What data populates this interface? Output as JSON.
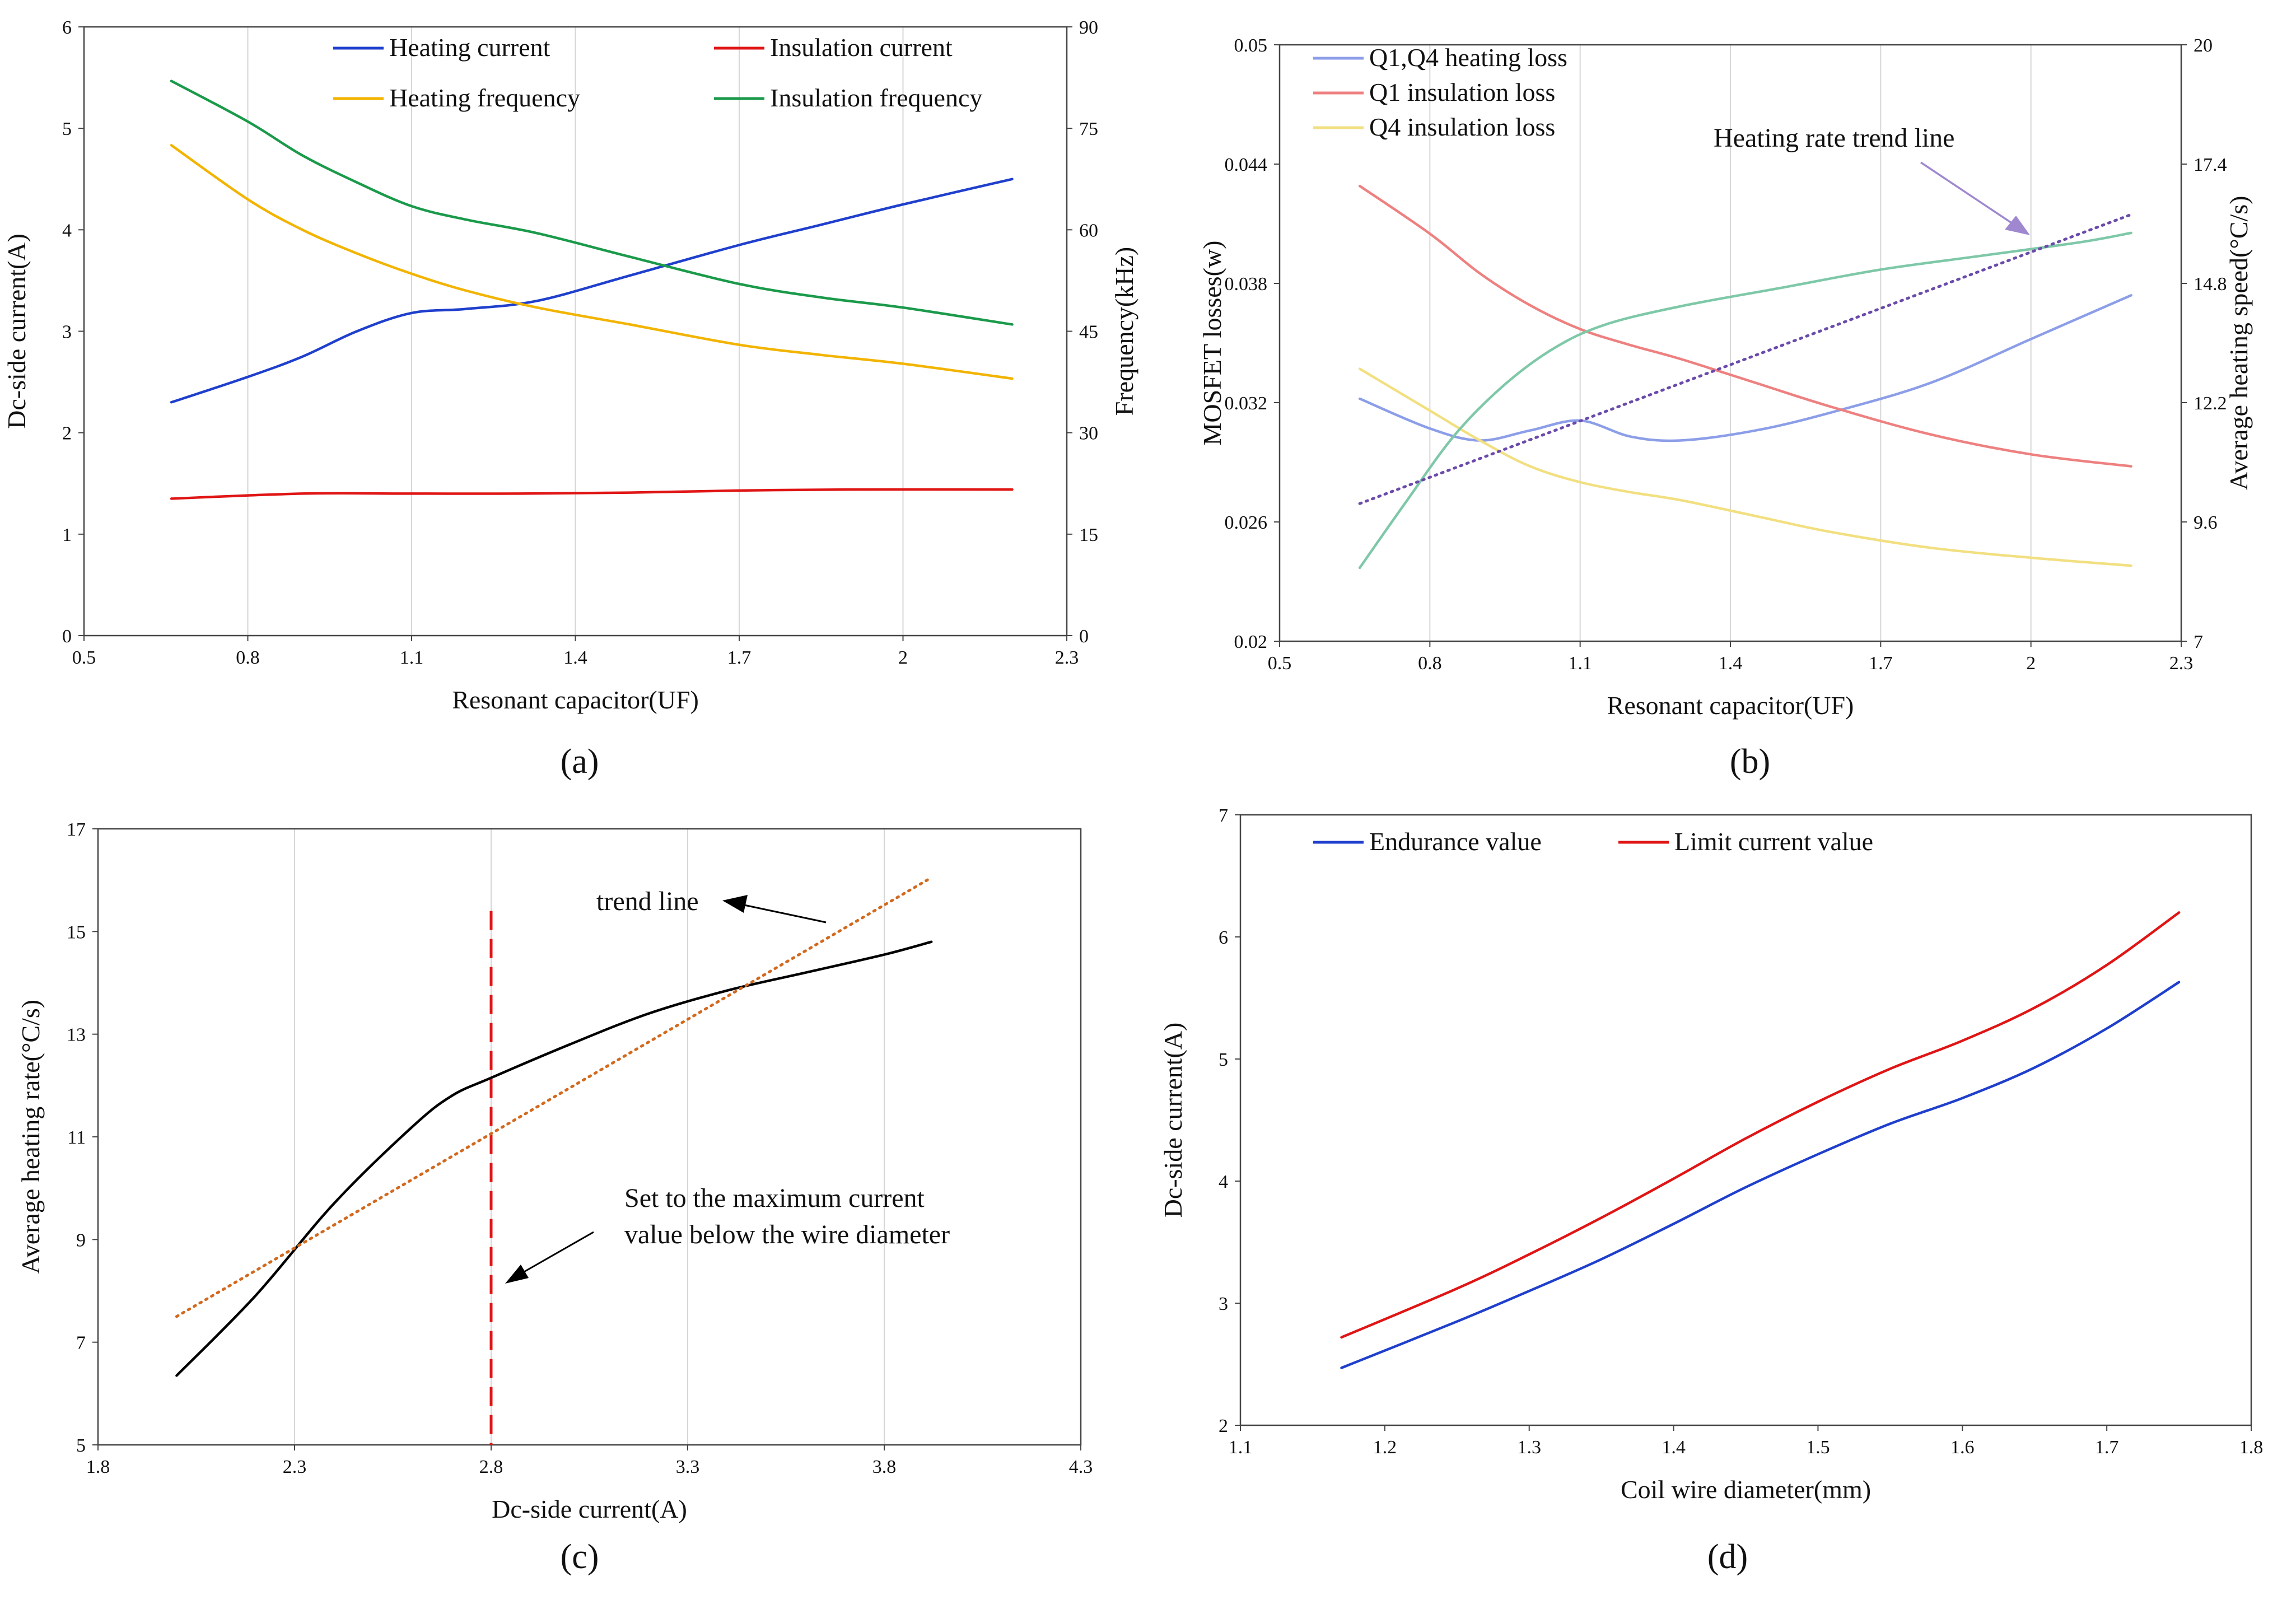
{
  "chart_data": [
    {
      "id": "a",
      "type": "line",
      "caption": "(a)",
      "xlabel": "Resonant capacitor(UF)",
      "ylabel": "Dc-side current(A)",
      "y2label": "Frequency(kHz)",
      "xlim": [
        0.5,
        2.3
      ],
      "ylim": [
        0,
        6
      ],
      "y2lim": [
        0,
        90
      ],
      "xticks": [
        "0.5",
        "0.8",
        "1.1",
        "1.4",
        "1.7",
        "2",
        "2.3"
      ],
      "yticks": [
        "0",
        "1",
        "2",
        "3",
        "4",
        "5",
        "6"
      ],
      "y2ticks": [
        "0",
        "15",
        "30",
        "45",
        "60",
        "75",
        "90"
      ],
      "grid": "vertical",
      "series": [
        {
          "name": "Heating current",
          "color": "#1f3fcc",
          "axis": "left",
          "x": [
            0.66,
            0.8,
            0.9,
            1.0,
            1.1,
            1.2,
            1.33,
            1.5,
            1.7,
            1.85,
            2.0,
            2.2
          ],
          "y": [
            2.3,
            2.55,
            2.75,
            3.0,
            3.18,
            3.22,
            3.3,
            3.55,
            3.85,
            4.05,
            4.25,
            4.5
          ]
        },
        {
          "name": "Insulation current",
          "color": "#e01515",
          "axis": "left",
          "x": [
            0.66,
            0.9,
            1.1,
            1.3,
            1.5,
            1.7,
            1.9,
            2.2
          ],
          "y": [
            1.35,
            1.4,
            1.4,
            1.4,
            1.41,
            1.43,
            1.44,
            1.44
          ]
        },
        {
          "name": "Heating frequency",
          "color": "#f2b400",
          "axis": "right",
          "x": [
            0.66,
            0.8,
            0.9,
            1.0,
            1.1,
            1.2,
            1.33,
            1.5,
            1.7,
            1.85,
            2.0,
            2.2
          ],
          "y": [
            72.5,
            64.5,
            60,
            56.5,
            53.5,
            51,
            48.5,
            46,
            43,
            41.5,
            40.2,
            38
          ]
        },
        {
          "name": "Insulation frequency",
          "color": "#1a9a4a",
          "axis": "right",
          "x": [
            0.66,
            0.8,
            0.9,
            1.0,
            1.1,
            1.2,
            1.33,
            1.5,
            1.7,
            1.85,
            2.0,
            2.2
          ],
          "y": [
            82,
            76,
            71,
            67,
            63.5,
            61.5,
            59.5,
            56,
            52,
            50,
            48.5,
            46
          ]
        }
      ]
    },
    {
      "id": "b",
      "type": "line",
      "caption": "(b)",
      "xlabel": "Resonant capacitor(UF)",
      "ylabel": "MOSFET losses(w)",
      "y2label": "Average heating speed(°C/s)",
      "xlim": [
        0.5,
        2.3
      ],
      "ylim": [
        0.02,
        0.05
      ],
      "y2lim": [
        7,
        20
      ],
      "xticks": [
        "0.5",
        "0.8",
        "1.1",
        "1.4",
        "1.7",
        "2",
        "2.3"
      ],
      "yticks": [
        "0.02",
        "0.026",
        "0.032",
        "0.038",
        "0.044",
        "0.05"
      ],
      "y2ticks": [
        "7",
        "9.6",
        "12.2",
        "14.8",
        "17.4",
        "20"
      ],
      "grid": "vertical",
      "annotation": "Heating rate trend line",
      "series": [
        {
          "name": "Q1,Q4 heating loss",
          "color": "#8c9ee8",
          "axis": "left",
          "x": [
            0.66,
            0.8,
            0.9,
            1.0,
            1.1,
            1.2,
            1.3,
            1.45,
            1.6,
            1.8,
            2.0,
            2.2
          ],
          "y": [
            0.0322,
            0.0307,
            0.0301,
            0.0306,
            0.0311,
            0.0303,
            0.0301,
            0.0306,
            0.0315,
            0.033,
            0.0352,
            0.0374
          ]
        },
        {
          "name": "Q1 insulation loss",
          "color": "#ee8080",
          "axis": "left",
          "x": [
            0.66,
            0.8,
            0.9,
            1.0,
            1.1,
            1.2,
            1.3,
            1.45,
            1.6,
            1.8,
            2.0,
            2.2
          ],
          "y": [
            0.0429,
            0.0405,
            0.0385,
            0.0369,
            0.0357,
            0.0349,
            0.0342,
            0.033,
            0.0318,
            0.0304,
            0.0294,
            0.0288
          ]
        },
        {
          "name": "Q4 insulation loss",
          "color": "#f2df80",
          "axis": "left",
          "x": [
            0.66,
            0.8,
            0.9,
            1.0,
            1.1,
            1.2,
            1.3,
            1.45,
            1.6,
            1.8,
            2.0,
            2.2
          ],
          "y": [
            0.0337,
            0.0316,
            0.0301,
            0.0288,
            0.028,
            0.0275,
            0.0271,
            0.0263,
            0.0255,
            0.0247,
            0.0242,
            0.0238
          ]
        },
        {
          "name": "Average heating speed",
          "color": "#7ec8a8",
          "axis": "right",
          "x": [
            0.66,
            0.75,
            0.85,
            0.95,
            1.05,
            1.15,
            1.3,
            1.5,
            1.7,
            1.9,
            2.1,
            2.2
          ],
          "y": [
            8.6,
            10,
            11.5,
            12.6,
            13.4,
            13.9,
            14.3,
            14.7,
            15.1,
            15.4,
            15.7,
            15.9
          ]
        },
        {
          "name": "Heating rate trend line",
          "color": "#6a4aaa",
          "axis": "right",
          "style": "dotted",
          "x": [
            0.66,
            2.2
          ],
          "y": [
            10.0,
            16.3
          ]
        }
      ]
    },
    {
      "id": "c",
      "type": "line",
      "caption": "(c)",
      "xlabel": "Dc-side current(A)",
      "ylabel": "Average heating rate(°C/s)",
      "xlim": [
        1.8,
        4.3
      ],
      "ylim": [
        5,
        17
      ],
      "xticks": [
        "1.8",
        "2.3",
        "2.8",
        "3.3",
        "3.8",
        "4.3"
      ],
      "yticks": [
        "5",
        "7",
        "9",
        "11",
        "13",
        "15",
        "17"
      ],
      "grid": "vertical",
      "annotations": [
        "trend line",
        "Set to the maximum current",
        "value below the wire diameter"
      ],
      "marker_x": 2.8,
      "series": [
        {
          "name": "Average heating rate",
          "color": "#000000",
          "x": [
            2.0,
            2.2,
            2.4,
            2.6,
            2.7,
            2.8,
            3.0,
            3.2,
            3.4,
            3.6,
            3.8,
            3.92
          ],
          "y": [
            6.35,
            7.9,
            9.7,
            11.2,
            11.8,
            12.15,
            12.8,
            13.4,
            13.85,
            14.2,
            14.55,
            14.8
          ]
        },
        {
          "name": "trend line",
          "color": "#d2691e",
          "style": "dotted",
          "x": [
            2.0,
            3.92
          ],
          "y": [
            7.5,
            16.05
          ]
        }
      ]
    },
    {
      "id": "d",
      "type": "line",
      "caption": "(d)",
      "xlabel": "Coil wire diameter(mm)",
      "ylabel": "Dc-side current(A)",
      "xlim": [
        1.1,
        1.8
      ],
      "ylim": [
        2,
        7
      ],
      "xticks": [
        "1.1",
        "1.2",
        "1.3",
        "1.4",
        "1.5",
        "1.6",
        "1.7",
        "1.8"
      ],
      "yticks": [
        "2",
        "3",
        "4",
        "5",
        "6",
        "7"
      ],
      "grid": "none",
      "series": [
        {
          "name": "Endurance value",
          "color": "#1f3fcc",
          "x": [
            1.17,
            1.25,
            1.3,
            1.35,
            1.4,
            1.45,
            1.5,
            1.55,
            1.6,
            1.65,
            1.7,
            1.75
          ],
          "y": [
            2.47,
            2.85,
            3.1,
            3.36,
            3.65,
            3.95,
            4.22,
            4.47,
            4.68,
            4.93,
            5.25,
            5.63
          ]
        },
        {
          "name": "Limit current value",
          "color": "#e01515",
          "x": [
            1.17,
            1.25,
            1.3,
            1.35,
            1.4,
            1.45,
            1.5,
            1.55,
            1.6,
            1.65,
            1.7,
            1.75
          ],
          "y": [
            2.72,
            3.12,
            3.4,
            3.7,
            4.02,
            4.35,
            4.65,
            4.92,
            5.15,
            5.42,
            5.77,
            6.2
          ]
        }
      ]
    }
  ]
}
